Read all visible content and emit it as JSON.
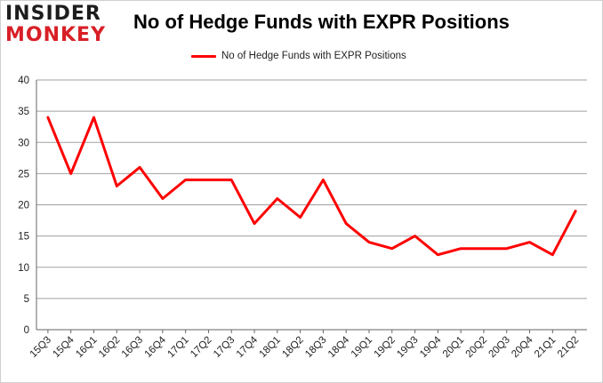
{
  "logo": {
    "line1": "INSIDER",
    "line2": "MONKEY"
  },
  "chart_data": {
    "type": "line",
    "title": "No of Hedge Funds with EXPR Positions",
    "xlabel": "",
    "ylabel": "",
    "categories": [
      "15Q3",
      "15Q4",
      "16Q1",
      "16Q2",
      "16Q3",
      "16Q4",
      "17Q1",
      "17Q2",
      "17Q3",
      "17Q4",
      "18Q1",
      "18Q2",
      "18Q3",
      "18Q4",
      "19Q1",
      "19Q2",
      "19Q3",
      "19Q4",
      "20Q1",
      "20Q2",
      "20Q3",
      "20Q4",
      "21Q1",
      "21Q2"
    ],
    "series": [
      {
        "name": "No of Hedge Funds with EXPR Positions",
        "color": "#ff0000",
        "values": [
          34,
          25,
          34,
          23,
          26,
          21,
          24,
          24,
          24,
          17,
          21,
          18,
          24,
          17,
          14,
          13,
          15,
          12,
          13,
          13,
          13,
          14,
          12,
          19
        ]
      }
    ],
    "ylim": [
      0,
      40
    ],
    "yticks": [
      0,
      5,
      10,
      15,
      20,
      25,
      30,
      35,
      40
    ],
    "grid": true,
    "legend_position": "top-center"
  }
}
